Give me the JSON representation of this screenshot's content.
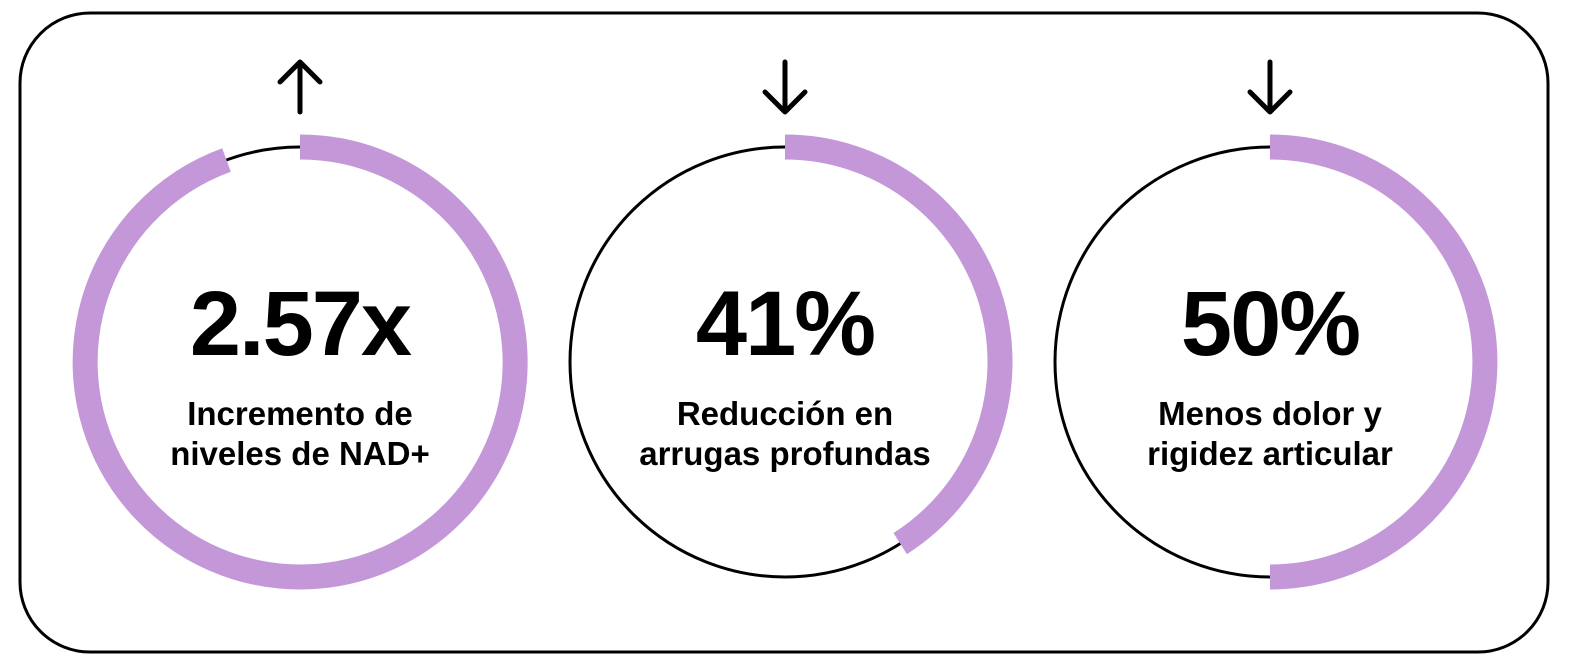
{
  "stats": [
    {
      "value_label": "2.57x",
      "value": 2.57,
      "label_lines": [
        "Incremento de",
        "niveles de NAD+"
      ]
    },
    {
      "value_label": "41%",
      "value": 41,
      "label_lines": [
        "Reducción en",
        "arrugas profundas"
      ]
    },
    {
      "value_label": "50%",
      "value": 50,
      "label_lines": [
        "Menos dolor y",
        "rigidez articular"
      ]
    }
  ]
}
